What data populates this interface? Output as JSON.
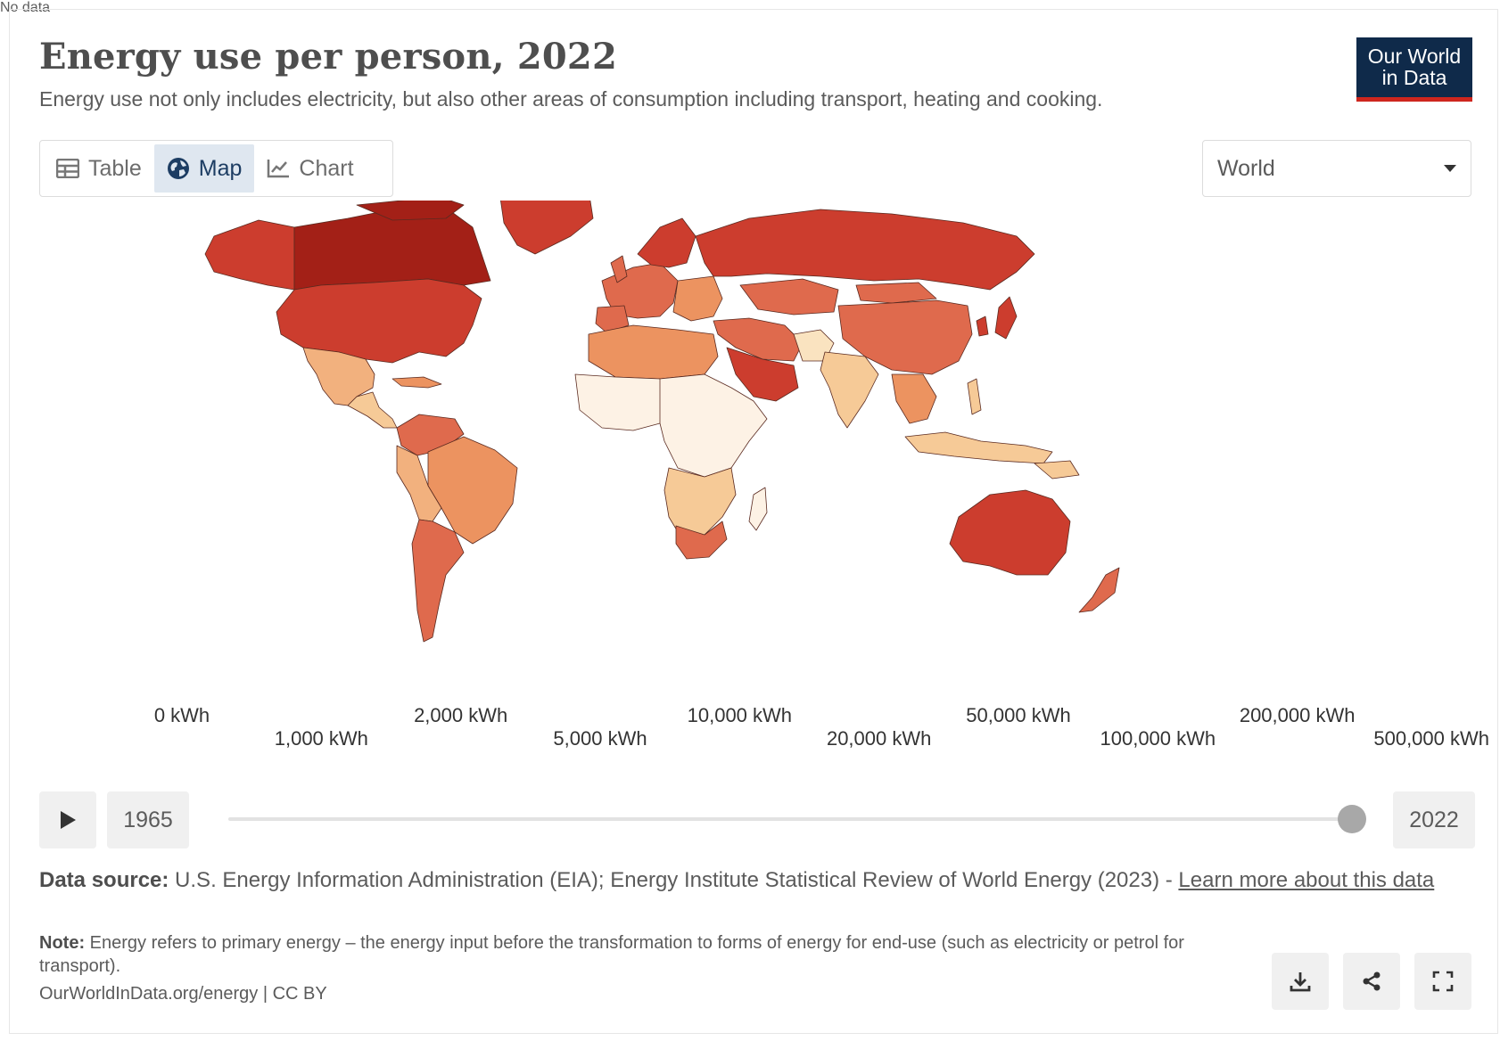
{
  "header": {
    "title": "Energy use per person, 2022",
    "subtitle": "Energy use not only includes electricity, but also other areas of consumption including transport, heating and cooking."
  },
  "logo": {
    "line1": "Our World",
    "line2": "in Data"
  },
  "tabs": [
    {
      "label": "Table",
      "icon": "table-icon",
      "active": false
    },
    {
      "label": "Map",
      "icon": "globe-icon",
      "active": true
    },
    {
      "label": "Chart",
      "icon": "line-chart-icon",
      "active": false
    }
  ],
  "region_select": {
    "value": "World"
  },
  "legend": {
    "no_data_label": "No data",
    "upper_labels": [
      "0 kWh",
      "2,000 kWh",
      "10,000 kWh",
      "50,000 kWh",
      "200,000 kWh"
    ],
    "lower_labels": [
      "1,000 kWh",
      "5,000 kWh",
      "20,000 kWh",
      "100,000 kWh",
      "500,000 kWh"
    ],
    "colors": [
      "#fdf2e5",
      "#fae3c0",
      "#f6ca97",
      "#f2b17e",
      "#ec9360",
      "#df6a4d",
      "#cc3d2e",
      "#a32017",
      "#7a1410"
    ]
  },
  "timeline": {
    "start_year": "1965",
    "end_year": "2022",
    "position": 1.0
  },
  "footer": {
    "source_label": "Data source:",
    "source_text": " U.S. Energy Information Administration (EIA); Energy Institute Statistical Review of World Energy (2023) - ",
    "source_link": "Learn more about this data",
    "note_label": "Note:",
    "note_text": " Energy refers to primary energy – the energy input before the transformation to forms of energy for end-use (such as electricity or petrol for transport).",
    "url": "OurWorldInData.org/energy | CC BY"
  },
  "actions": [
    {
      "name": "download-button",
      "icon": "download-icon"
    },
    {
      "name": "share-button",
      "icon": "share-icon"
    },
    {
      "name": "fullscreen-button",
      "icon": "fullscreen-icon"
    }
  ]
}
